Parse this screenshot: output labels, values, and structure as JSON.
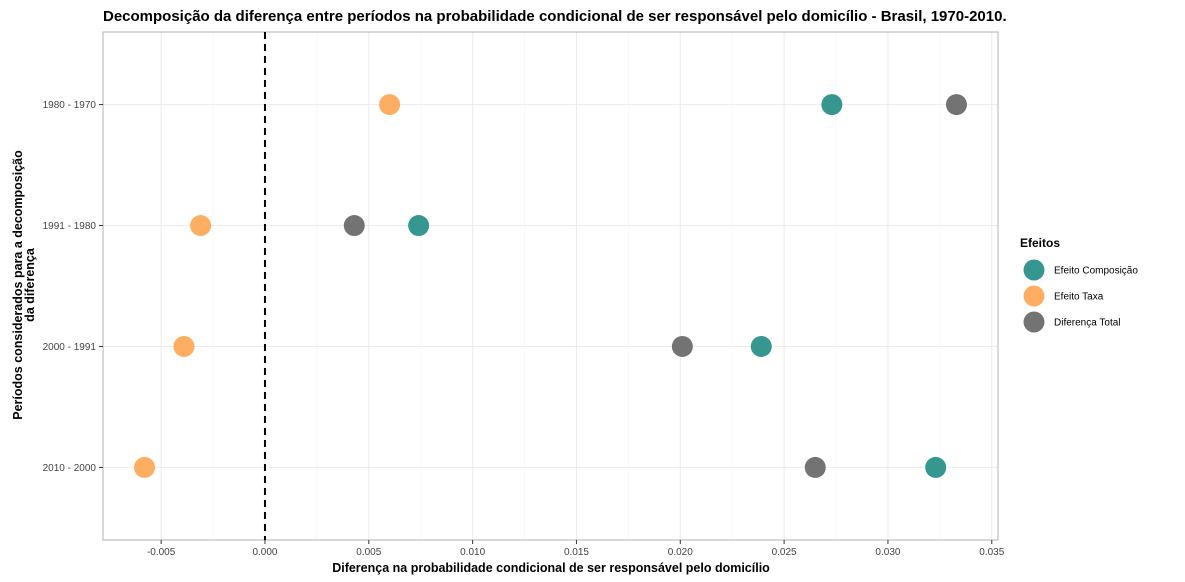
{
  "chart_data": {
    "type": "scatter",
    "title": "Decomposição da diferença entre períodos na probabilidade condicional de ser responsável pelo domicílio - Brasil, 1970-2010.",
    "xlabel": "Diferença na probabilidade condicional de ser responsável pelo domicílio",
    "ylabel_lines": [
      "Períodos considerados para a decomposição",
      "da diferença"
    ],
    "xlim": [
      -0.0078,
      0.0353
    ],
    "x_ticks": [
      -0.005,
      0.0,
      0.005,
      0.01,
      0.015,
      0.02,
      0.025,
      0.03,
      0.035
    ],
    "x_tick_labels": [
      "-0.005",
      "0.000",
      "0.005",
      "0.010",
      "0.015",
      "0.020",
      "0.025",
      "0.030",
      "0.035"
    ],
    "categories": [
      "1980 - 1970",
      "1991 - 1980",
      "2000 - 1991",
      "2010 - 2000"
    ],
    "reference_line_x": 0.0,
    "legend_title": "Efeitos",
    "legend_position": "right",
    "grid": true,
    "series": [
      {
        "name": "Efeito Composição",
        "color": "#35978f",
        "values": [
          0.0273,
          0.0074,
          0.0239,
          0.0323
        ]
      },
      {
        "name": "Efeito Taxa",
        "color": "#fdae61",
        "values": [
          0.006,
          -0.0031,
          -0.0039,
          -0.0058
        ]
      },
      {
        "name": "Diferença Total",
        "color": "#737373",
        "values": [
          0.0333,
          0.0043,
          0.0201,
          0.0265
        ]
      }
    ]
  }
}
